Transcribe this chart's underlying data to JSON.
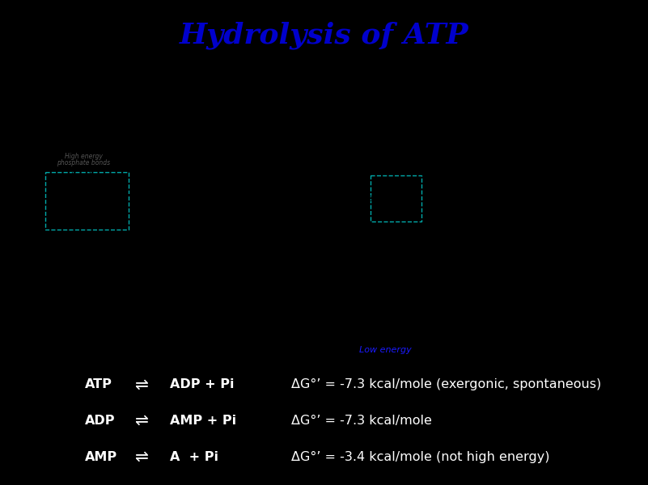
{
  "title": "Hydrolysis of ATP",
  "title_color": "#0000CC",
  "title_fontsize": 26,
  "title_fontstyle": "italic",
  "title_fontfamily": "serif",
  "title_bg": "#FFFFFF",
  "background_color": "#000000",
  "diagram_bg": "#FFFFFF",
  "high_energy_label": "High energy",
  "high_energy_color": "#FFFFFF",
  "low_energy_label": "Low energy",
  "low_energy_color": "#1A1AFF",
  "reactions": [
    {
      "left": "ATP",
      "arrow": "⇌",
      "right": "ADP + Pi",
      "delta": "ΔG°’ = -7.3 kcal/mole (exergonic, spontaneous)"
    },
    {
      "left": "ADP",
      "arrow": "⇌",
      "right": "AMP + Pi",
      "delta": "ΔG°’ = -7.3 kcal/mole"
    },
    {
      "left": "AMP",
      "arrow": "⇌",
      "right": "A  + Pi",
      "delta": "ΔG°’ = -3.4 kcal/mole (not high energy)"
    }
  ],
  "reaction_fontsize": 11.5,
  "reaction_color": "#FFFFFF"
}
